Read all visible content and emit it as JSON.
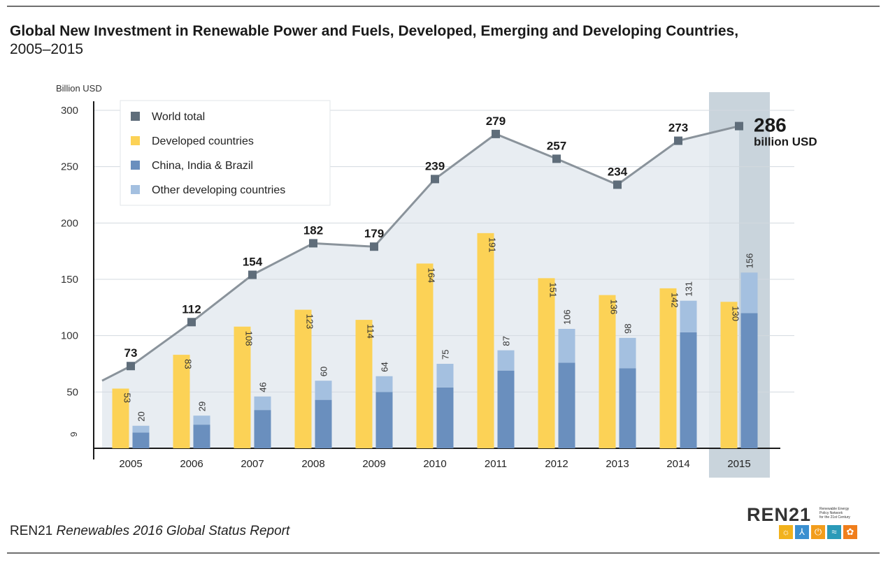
{
  "title": "Global New Investment in Renewable Power and Fuels, Developed, Emerging and Developing Countries,",
  "subtitle": "2005–2015",
  "source": {
    "org": "REN21",
    "report": "Renewables 2016 Global Status Report"
  },
  "logo": {
    "word": "REN21",
    "tagline": [
      "Renewable Energy",
      "Policy Network",
      "for the 21st Century"
    ],
    "icons": [
      {
        "name": "sun-icon",
        "glyph": "☼",
        "color": "#f2b21c"
      },
      {
        "name": "wind-icon",
        "glyph": "⅄",
        "color": "#3a8fd0"
      },
      {
        "name": "power-icon",
        "glyph": "⏻",
        "color": "#f29d1c"
      },
      {
        "name": "water-icon",
        "glyph": "≈",
        "color": "#2b9ab8"
      },
      {
        "name": "leaf-icon",
        "glyph": "✿",
        "color": "#f07e1c"
      }
    ]
  },
  "colors": {
    "world_total": "#5f6d7a",
    "developed": "#fcd256",
    "china_india_brazil": "#6a8fbe",
    "other_developing": "#a4c0e0",
    "area": "#e4eaf0",
    "highlight": "#c9d4dc"
  },
  "chart_data": {
    "type": "bar",
    "ylabel": "Billion USD",
    "ylim": [
      0,
      300
    ],
    "yticks": [
      50,
      100,
      150,
      200,
      250,
      300
    ],
    "categories": [
      "2005",
      "2006",
      "2007",
      "2008",
      "2009",
      "2010",
      "2011",
      "2012",
      "2013",
      "2014",
      "2015"
    ],
    "highlight_category": "2015",
    "legend": {
      "placement": "top-left",
      "entries": [
        "World total",
        "Developed countries",
        "China, India & Brazil",
        "Other developing countries"
      ]
    },
    "series": [
      {
        "name": "World total",
        "type": "line",
        "values": [
          73,
          112,
          154,
          182,
          179,
          239,
          279,
          257,
          234,
          273,
          286
        ]
      },
      {
        "name": "Developed countries",
        "type": "bar",
        "values": [
          53,
          83,
          108,
          123,
          114,
          164,
          191,
          151,
          136,
          142,
          130
        ]
      },
      {
        "name": "China, India & Brazil",
        "type": "stacked-bar",
        "values": [
          14,
          21,
          34,
          43,
          50,
          54,
          69,
          76,
          71,
          103,
          120
        ]
      },
      {
        "name": "Other developing countries",
        "type": "stacked-bar",
        "values": [
          6,
          8,
          12,
          17,
          14,
          21,
          18,
          30,
          27,
          28,
          36
        ]
      }
    ],
    "developing_totals": [
      20,
      29,
      46,
      60,
      64,
      75,
      87,
      106,
      98,
      131,
      156
    ],
    "annotations": {
      "line_start_value": 60,
      "low_label": "9",
      "low_label_value": 9,
      "final_value_label": "286",
      "final_unit_label": "billion USD"
    }
  }
}
